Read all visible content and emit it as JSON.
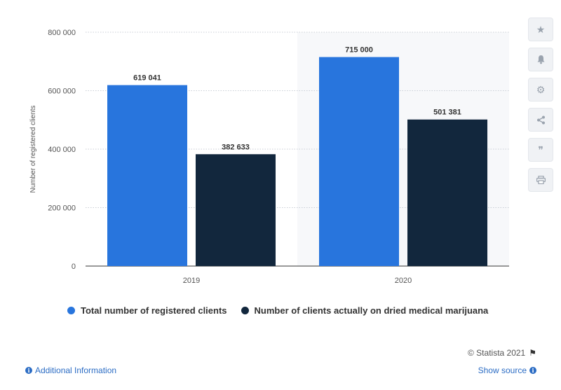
{
  "chart_data": {
    "type": "bar",
    "categories": [
      "2019",
      "2020"
    ],
    "series": [
      {
        "name": "Total number of registered clients",
        "color": "#2875dd",
        "values": [
          619041,
          715000
        ],
        "labels": [
          "619 041",
          "715 000"
        ]
      },
      {
        "name": "Number of clients actually on dried medical marijuana",
        "color": "#12273d",
        "values": [
          382633,
          501381
        ],
        "labels": [
          "382 633",
          "501 381"
        ]
      }
    ],
    "ylabel": "Number of registered clients",
    "xlabel": "",
    "ylim": [
      0,
      800000
    ],
    "yticks": [
      0,
      200000,
      400000,
      600000,
      800000
    ],
    "ytick_labels": [
      "0",
      "200 000",
      "400 000",
      "600 000",
      "800 000"
    ],
    "grid": true,
    "highlighted_category": "2020",
    "legend_position": "bottom"
  },
  "toolbar": {
    "buttons": [
      {
        "name": "favorite-star-icon",
        "glyph": "★"
      },
      {
        "name": "notification-bell-icon",
        "glyph": "🔔"
      },
      {
        "name": "settings-gear-icon",
        "glyph": "⚙"
      },
      {
        "name": "share-icon",
        "glyph": "⋖"
      },
      {
        "name": "cite-quote-icon",
        "glyph": "❞"
      },
      {
        "name": "print-icon",
        "glyph": "⎙"
      }
    ]
  },
  "footer": {
    "credit": "© Statista 2021",
    "additional_info": "Additional Information",
    "show_source": "Show source"
  }
}
